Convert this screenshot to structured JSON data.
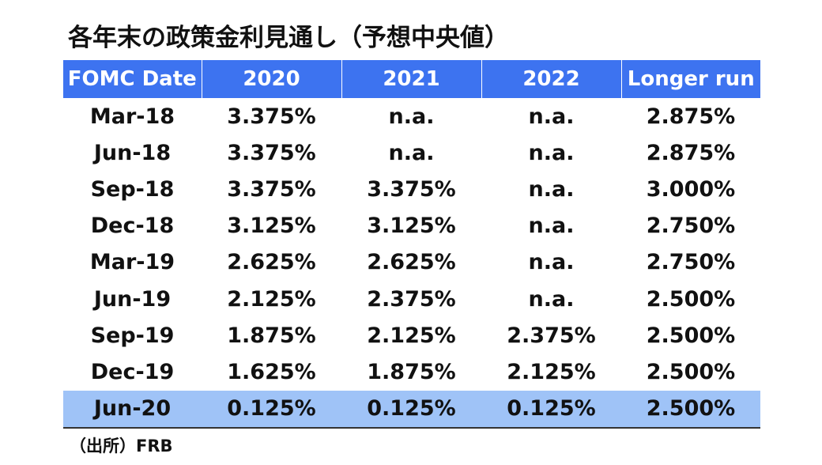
{
  "chart_data": {
    "type": "table",
    "title": "各年末の政策金利見通し（予想中央値）",
    "columns": [
      "FOMC Date",
      "2020",
      "2021",
      "2022",
      "Longer run"
    ],
    "rows": [
      [
        "Mar-18",
        "3.375%",
        "n.a.",
        "n.a.",
        "2.875%"
      ],
      [
        "Jun-18",
        "3.375%",
        "n.a.",
        "n.a.",
        "2.875%"
      ],
      [
        "Sep-18",
        "3.375%",
        "3.375%",
        "n.a.",
        "3.000%"
      ],
      [
        "Dec-18",
        "3.125%",
        "3.125%",
        "n.a.",
        "2.750%"
      ],
      [
        "Mar-19",
        "2.625%",
        "2.625%",
        "n.a.",
        "2.750%"
      ],
      [
        "Jun-19",
        "2.125%",
        "2.375%",
        "n.a.",
        "2.500%"
      ],
      [
        "Sep-19",
        "1.875%",
        "2.125%",
        "2.375%",
        "2.500%"
      ],
      [
        "Dec-19",
        "1.625%",
        "1.875%",
        "2.125%",
        "2.500%"
      ],
      [
        "Jun-20",
        "0.125%",
        "0.125%",
        "0.125%",
        "2.500%"
      ]
    ],
    "highlight_row": "Jun-20",
    "source": "（出所）FRB"
  },
  "colors": {
    "header_bg": "#3d73f0",
    "header_text": "#ffffff",
    "highlight_bg": "#9fc3f7",
    "text": "#111111"
  }
}
